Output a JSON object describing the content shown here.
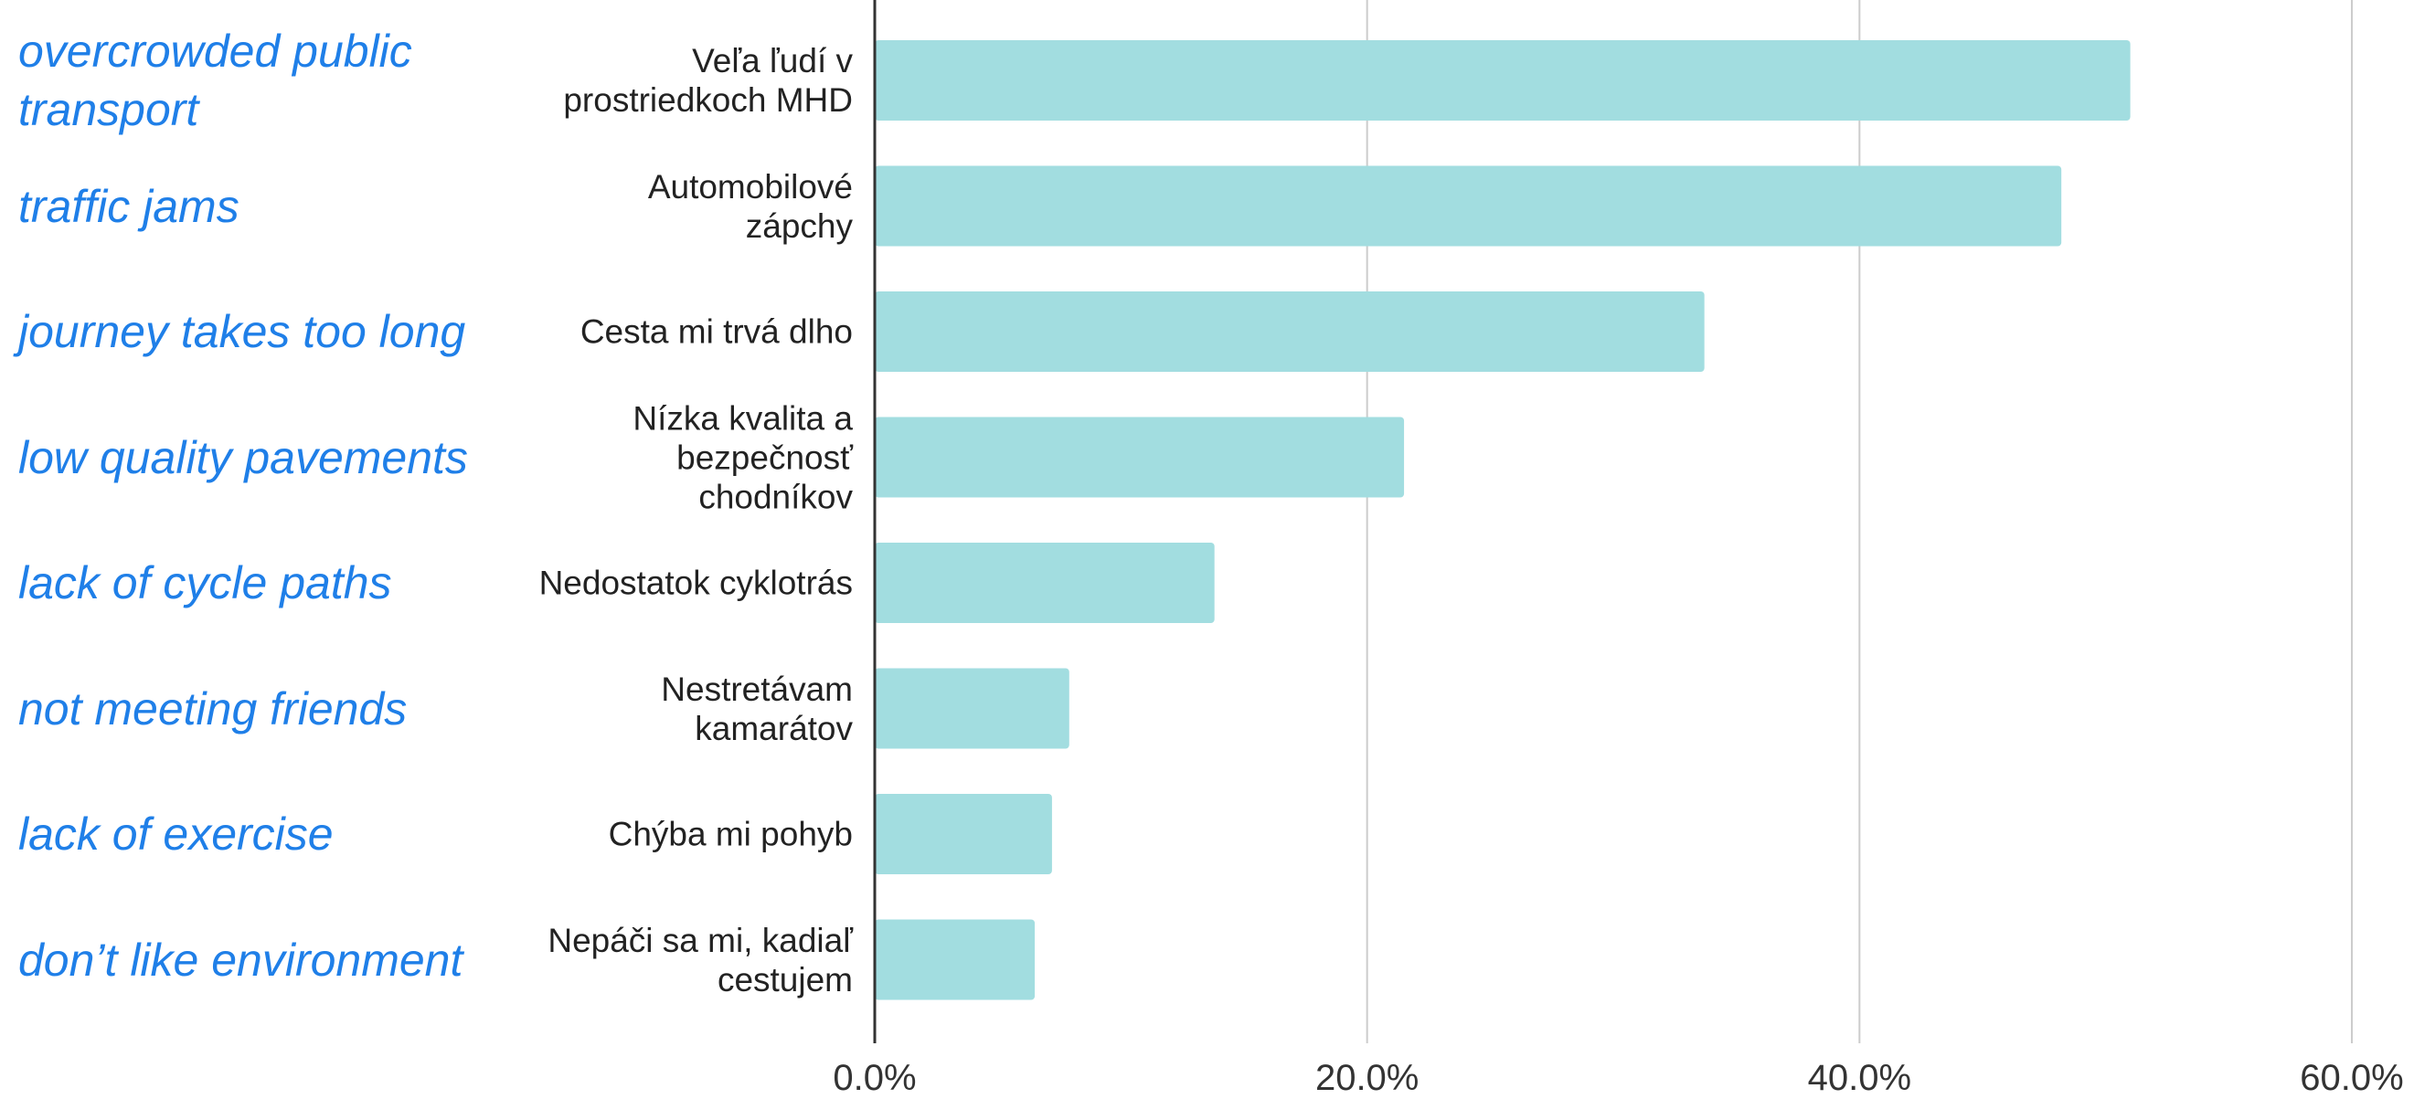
{
  "chart_data": {
    "type": "bar",
    "orientation": "horizontal",
    "categories": [
      "Veľa ľudí v\nprostriedkoch MHD",
      "Automobilové\nzápchy",
      "Cesta mi trvá dlho",
      "Nízka kvalita a\nbezpečnosť\nchodníkov",
      "Nedostatok cyklotrás",
      "Nestretávam\nkamarátov",
      "Chýba mi pohyb",
      "Nepáči sa mi, kadiaľ\ncestujem"
    ],
    "annotations": [
      "overcrowded public\ntransport",
      "traffic jams",
      "journey takes too long",
      "low quality pavements",
      "lack of cycle paths",
      "not meeting friends",
      "lack of exercise",
      "don’t like environment"
    ],
    "values": [
      51.0,
      48.2,
      33.7,
      21.5,
      13.8,
      7.9,
      7.2,
      6.5
    ],
    "color": "#a2dde0",
    "xlim": [
      0,
      60
    ],
    "xticks": [
      {
        "value": 0,
        "label": "0.0%"
      },
      {
        "value": 20,
        "label": "20.0%"
      },
      {
        "value": 40,
        "label": "40.0%"
      },
      {
        "value": 60,
        "label": "60.0%"
      }
    ],
    "grid": true
  }
}
